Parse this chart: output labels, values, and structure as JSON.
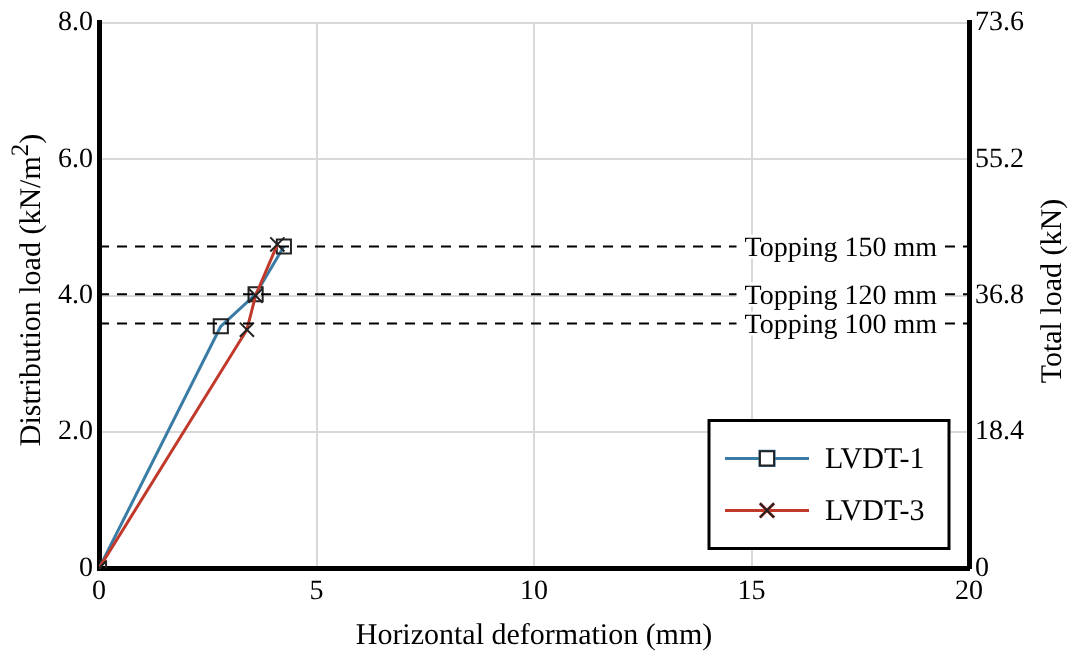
{
  "chart_data": {
    "type": "line",
    "xlabel": "Horizontal deformation (mm)",
    "ylabel": "Distribution load (kN/m$^{2}$)",
    "y2label": "Total load (kN)",
    "xlim": [
      0,
      20
    ],
    "xticks": [
      0,
      5,
      10,
      15,
      20
    ],
    "ylim": [
      0,
      8
    ],
    "yticks": [
      0,
      {
        "value": 2,
        "label": "2.0"
      },
      {
        "value": 4,
        "label": "4.0"
      },
      {
        "value": 6,
        "label": "6.0"
      },
      {
        "value": 8,
        "label": "8.0"
      }
    ],
    "y2lim": [
      0,
      73.6
    ],
    "y2ticks": [
      0,
      18.4,
      36.8,
      55.2,
      73.6
    ],
    "grid": true,
    "legend": "bottom right",
    "line_style": "solid",
    "series": [
      {
        "name": "LVDT-1",
        "color": "#3a7ca5",
        "marker": "square",
        "x": [
          0,
          2.8,
          3.6,
          4.25
        ],
        "values": [
          0,
          3.55,
          4.02,
          4.72
        ]
      },
      {
        "name": "LVDT-3",
        "color": "#c0392b",
        "marker": "cross",
        "x": [
          0,
          3.4,
          3.6,
          4.1
        ],
        "values": [
          0,
          3.5,
          4.0,
          4.75
        ]
      }
    ],
    "ref_lines": [
      {
        "axis": "y",
        "value": 4.72,
        "label": "Topping 150 mm",
        "color": "#000000",
        "line_style": "dashed"
      },
      {
        "axis": "y",
        "value": 4.02,
        "label": "Topping 120 mm",
        "color": "#000000",
        "line_style": "dashed"
      },
      {
        "axis": "y",
        "value": 3.59,
        "label": "Topping 100 mm",
        "color": "#000000",
        "line_style": "dashed"
      }
    ]
  }
}
